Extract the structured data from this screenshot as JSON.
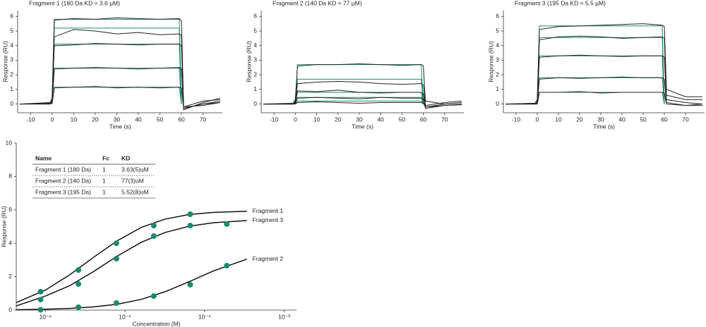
{
  "chart_data": [
    {
      "type": "line",
      "title": "Fragment 1 (180 Da KD = 3.6 µM)",
      "xlabel": "Time (s)",
      "ylabel": "Response (RU)",
      "xlim": [
        -16,
        79
      ],
      "ylim": [
        -0.6,
        6.4
      ],
      "xticks": [
        -10,
        0,
        10,
        20,
        30,
        40,
        50,
        60,
        70
      ],
      "yticks": [
        0,
        1,
        2,
        3,
        4,
        5,
        6
      ],
      "x": [
        -15,
        -1,
        0,
        1,
        10,
        20,
        30,
        40,
        50,
        59,
        60,
        61,
        70,
        78
      ],
      "series": [
        {
          "color": "#1a8a6e",
          "values": [
            null,
            null,
            0,
            5.8,
            5.8,
            5.8,
            5.8,
            5.8,
            5.8,
            5.8,
            0,
            null,
            null,
            null
          ]
        },
        {
          "color": "#1a8a6e",
          "values": [
            null,
            null,
            0,
            5.2,
            5.2,
            5.2,
            5.2,
            5.2,
            5.2,
            5.2,
            0,
            null,
            null,
            null
          ]
        },
        {
          "color": "#1a8a6e",
          "values": [
            null,
            null,
            0,
            4.1,
            4.1,
            4.1,
            4.1,
            4.1,
            4.1,
            4.1,
            0,
            null,
            null,
            null
          ]
        },
        {
          "color": "#1a8a6e",
          "values": [
            null,
            null,
            0,
            2.45,
            2.45,
            2.45,
            2.45,
            2.45,
            2.45,
            2.45,
            0,
            null,
            null,
            null
          ]
        },
        {
          "color": "#1a8a6e",
          "values": [
            null,
            null,
            0,
            1.15,
            1.15,
            1.15,
            1.15,
            1.15,
            1.15,
            1.15,
            0,
            null,
            null,
            null
          ]
        },
        {
          "color": "#222222",
          "values": [
            0,
            0.05,
            0.4,
            5.75,
            5.85,
            5.8,
            5.9,
            5.85,
            5.8,
            5.85,
            5.7,
            -0.2,
            0.2,
            0.3
          ]
        },
        {
          "color": "#222222",
          "values": [
            0,
            0.1,
            0.3,
            4.6,
            5.1,
            5.0,
            4.8,
            4.9,
            4.75,
            4.8,
            4.7,
            -0.3,
            0,
            0.2
          ]
        },
        {
          "color": "#222222",
          "values": [
            0,
            0.05,
            0.2,
            4.0,
            4.05,
            4.15,
            4.1,
            4.05,
            4.1,
            4.1,
            4.0,
            -0.4,
            0.1,
            0.4
          ]
        },
        {
          "color": "#222222",
          "values": [
            0,
            0,
            0.1,
            2.4,
            2.45,
            2.5,
            2.45,
            2.4,
            2.45,
            2.5,
            2.4,
            -0.2,
            -0.1,
            0.1
          ]
        },
        {
          "color": "#222222",
          "values": [
            0,
            0,
            0.05,
            1.1,
            1.15,
            1.2,
            1.1,
            1.15,
            1.1,
            1.15,
            1.1,
            -0.3,
            0,
            0.1
          ]
        }
      ]
    },
    {
      "type": "line",
      "title": "Fragment 2 (140 Da KD = 77 µM)",
      "xlabel": "Time (s)",
      "ylabel": "Response (RU)",
      "xlim": [
        -16,
        79
      ],
      "ylim": [
        -0.6,
        6.4
      ],
      "xticks": [
        -10,
        0,
        10,
        20,
        30,
        40,
        50,
        60,
        70
      ],
      "yticks": [
        0,
        1,
        2,
        3,
        4,
        5,
        6
      ],
      "x": [
        -15,
        -1,
        0,
        1,
        10,
        20,
        30,
        40,
        50,
        59,
        60,
        61,
        70,
        78
      ],
      "series": [
        {
          "color": "#1a8a6e",
          "values": [
            null,
            null,
            0,
            2.7,
            2.7,
            2.7,
            2.7,
            2.7,
            2.7,
            2.7,
            0,
            null,
            null,
            null
          ]
        },
        {
          "color": "#1a8a6e",
          "values": [
            null,
            null,
            0,
            1.7,
            1.7,
            1.7,
            1.7,
            1.7,
            1.7,
            1.7,
            0,
            null,
            null,
            null
          ]
        },
        {
          "color": "#1a8a6e",
          "values": [
            null,
            null,
            0,
            0.8,
            0.8,
            0.8,
            0.8,
            0.8,
            0.8,
            0.8,
            0,
            null,
            null,
            null
          ]
        },
        {
          "color": "#1a8a6e",
          "values": [
            null,
            null,
            0,
            0.45,
            0.45,
            0.45,
            0.45,
            0.45,
            0.45,
            0.45,
            0,
            null,
            null,
            null
          ]
        },
        {
          "color": "#1a8a6e",
          "values": [
            null,
            null,
            0,
            0.2,
            0.2,
            0.2,
            0.2,
            0.2,
            0.2,
            0.2,
            0,
            null,
            null,
            null
          ]
        },
        {
          "color": "#222222",
          "values": [
            0,
            0.05,
            0.3,
            2.6,
            2.7,
            2.7,
            2.75,
            2.7,
            2.65,
            2.7,
            2.6,
            0.2,
            0,
            0.1
          ]
        },
        {
          "color": "#222222",
          "values": [
            0,
            0,
            0.2,
            1.4,
            1.5,
            1.55,
            1.5,
            1.4,
            1.35,
            1.4,
            1.3,
            -0.1,
            0.1,
            0.2
          ]
        },
        {
          "color": "#222222",
          "values": [
            0,
            0,
            0.1,
            0.9,
            0.85,
            0.95,
            0.8,
            0.75,
            0.8,
            0.8,
            0.7,
            -0.2,
            0,
            0.1
          ]
        },
        {
          "color": "#222222",
          "values": [
            0,
            0,
            0.05,
            0.4,
            0.45,
            0.4,
            0.35,
            0.45,
            0.4,
            0.4,
            0.35,
            -0.3,
            -0.1,
            0
          ]
        },
        {
          "color": "#222222",
          "values": [
            0,
            0,
            0,
            0.1,
            0.15,
            0.1,
            0.05,
            0.1,
            0.1,
            0.1,
            0.05,
            -0.2,
            -0.1,
            -0.05
          ]
        }
      ]
    },
    {
      "type": "line",
      "title": "Fragment 3 (195 Da KD = 5.5 µM)",
      "xlabel": "Time (s)",
      "ylabel": "Response (RU)",
      "xlim": [
        -16,
        79
      ],
      "ylim": [
        -0.6,
        6.4
      ],
      "xticks": [
        -10,
        0,
        10,
        20,
        30,
        40,
        50,
        60,
        70
      ],
      "yticks": [
        0,
        1,
        2,
        3,
        4,
        5,
        6
      ],
      "x": [
        -15,
        -1,
        0,
        1,
        10,
        20,
        30,
        40,
        50,
        59,
        60,
        61,
        70,
        78
      ],
      "series": [
        {
          "color": "#1a8a6e",
          "values": [
            null,
            null,
            0,
            5.35,
            5.35,
            5.35,
            5.35,
            5.35,
            5.35,
            5.35,
            0,
            null,
            null,
            null
          ]
        },
        {
          "color": "#1a8a6e",
          "values": [
            null,
            null,
            0,
            4.55,
            4.55,
            4.55,
            4.55,
            4.55,
            4.55,
            4.55,
            0,
            null,
            null,
            null
          ]
        },
        {
          "color": "#1a8a6e",
          "values": [
            null,
            null,
            0,
            3.3,
            3.3,
            3.3,
            3.3,
            3.3,
            3.3,
            3.3,
            0,
            null,
            null,
            null
          ]
        },
        {
          "color": "#1a8a6e",
          "values": [
            null,
            null,
            0,
            1.8,
            1.8,
            1.8,
            1.8,
            1.8,
            1.8,
            1.8,
            0,
            null,
            null,
            null
          ]
        },
        {
          "color": "#1a8a6e",
          "values": [
            null,
            null,
            0,
            0.8,
            0.8,
            0.8,
            0.8,
            0.8,
            0.8,
            0.8,
            0,
            null,
            null,
            null
          ]
        },
        {
          "color": "#222222",
          "values": [
            0,
            0.05,
            0.3,
            5.1,
            5.3,
            5.35,
            5.4,
            5.45,
            5.5,
            5.4,
            5.3,
            1.0,
            0.5,
            0.5
          ]
        },
        {
          "color": "#222222",
          "values": [
            0,
            0.05,
            0.2,
            4.4,
            4.6,
            4.65,
            4.6,
            4.5,
            4.55,
            4.6,
            4.5,
            0.6,
            0.3,
            0.3
          ]
        },
        {
          "color": "#222222",
          "values": [
            0,
            0,
            0.1,
            3.2,
            3.3,
            3.35,
            3.3,
            3.25,
            3.3,
            3.3,
            3.2,
            0.3,
            0.1,
            0
          ]
        },
        {
          "color": "#222222",
          "values": [
            0,
            0,
            0.05,
            1.7,
            1.8,
            1.75,
            1.8,
            1.85,
            1.8,
            1.8,
            1.7,
            0.1,
            -0.1,
            0
          ]
        },
        {
          "color": "#222222",
          "values": [
            0,
            0,
            0,
            0.8,
            0.8,
            0.85,
            0.75,
            0.8,
            0.8,
            0.8,
            0.75,
            0,
            -0.1,
            -0.1
          ]
        }
      ]
    },
    {
      "type": "scatter",
      "xlabel": "Concentration (M)",
      "ylabel": "Response (RU)",
      "xscale": "log",
      "xlim": [
        4.3e-07,
        0.00143
      ],
      "ylim": [
        0,
        10
      ],
      "xticks": [
        {
          "value": 1e-06,
          "label": "10⁻⁶"
        },
        {
          "value": 1e-05,
          "label": "10⁻⁵"
        },
        {
          "value": 0.0001,
          "label": "10⁻⁴"
        },
        {
          "value": 0.001,
          "label": "10⁻³"
        }
      ],
      "yticks": [
        0,
        2,
        4,
        6,
        8,
        10
      ],
      "x": [
        8.7e-07,
        2.6e-06,
        7.8e-06,
        2.3e-05,
        6.6e-05,
        0.00019
      ],
      "fit_x": [
        4.3e-07,
        1e-06,
        2e-06,
        4e-06,
        8e-06,
        1.6e-05,
        3.2e-05,
        6.4e-05,
        0.00013,
        0.00034
      ],
      "point_color": "#1a8a6e",
      "line_color": "#111111",
      "series": [
        {
          "name": "Fragment 1",
          "values": [
            1.1,
            2.4,
            4.0,
            5.06,
            5.74,
            null
          ],
          "fit": [
            0.45,
            1.2,
            2.1,
            3.15,
            4.15,
            4.95,
            5.45,
            5.72,
            5.85,
            5.92
          ]
        },
        {
          "name": "Fragment 3",
          "values": [
            0.63,
            1.56,
            3.08,
            4.43,
            5.06,
            5.15
          ],
          "fit": [
            0.25,
            0.84,
            1.45,
            2.3,
            3.23,
            4.06,
            4.65,
            5.02,
            5.23,
            5.36
          ]
        },
        {
          "name": "Fragment 2",
          "values": [
            0.02,
            0.17,
            0.42,
            0.84,
            1.52,
            2.66
          ],
          "fit": [
            0.02,
            0.05,
            0.1,
            0.19,
            0.35,
            0.64,
            1.1,
            1.7,
            2.35,
            3.05
          ]
        }
      ],
      "table": {
        "columns": [
          "Name",
          "Fc",
          "KD"
        ],
        "rows": [
          [
            "Fragment 1 (180 Da)",
            1,
            "3.63(5)uM"
          ],
          [
            "Fragment 2 (140 Da)",
            1,
            "77(3)uM"
          ],
          [
            "Fragment 3 (195 Da)",
            1,
            "5.52(8)uM"
          ]
        ]
      }
    }
  ]
}
